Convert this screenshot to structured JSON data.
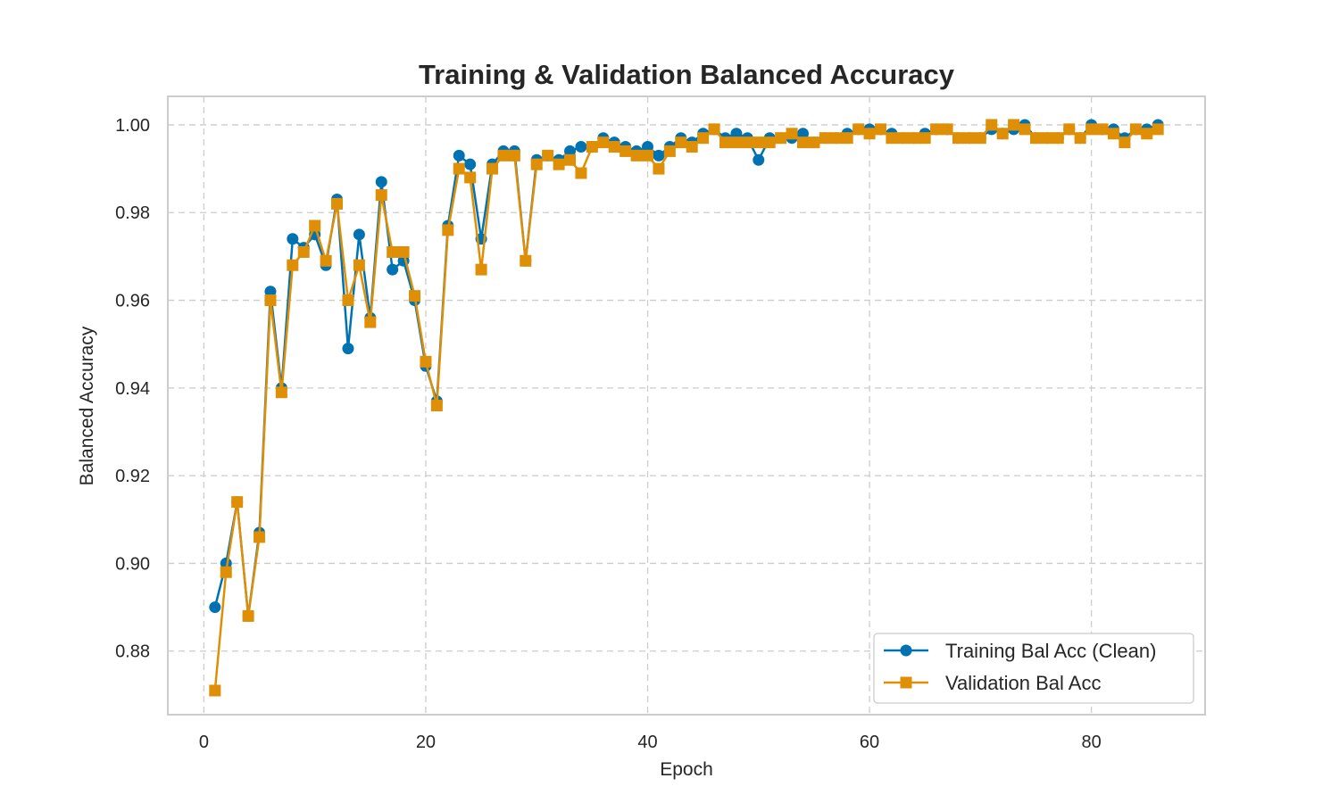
{
  "chart_data": {
    "type": "line",
    "title": "Training & Validation Balanced Accuracy",
    "xlabel": "Epoch",
    "ylabel": "Balanced Accuracy",
    "xlim": [
      -3.25,
      90.25
    ],
    "ylim": [
      0.8655,
      1.0065
    ],
    "xticks": [
      0,
      20,
      40,
      60,
      80
    ],
    "xtick_labels": [
      "0",
      "20",
      "40",
      "60",
      "80"
    ],
    "yticks": [
      0.88,
      0.9,
      0.92,
      0.94,
      0.96,
      0.98,
      1.0
    ],
    "ytick_labels": [
      "0.88",
      "0.90",
      "0.92",
      "0.94",
      "0.96",
      "0.98",
      "1.00"
    ],
    "grid": true,
    "legend_position": "lower-right",
    "series": [
      {
        "name": "Training Bal Acc (Clean)",
        "color": "#0072b2",
        "marker": "circle",
        "x": [
          1,
          2,
          3,
          4,
          5,
          6,
          7,
          8,
          9,
          10,
          11,
          12,
          13,
          14,
          15,
          16,
          17,
          18,
          19,
          20,
          21,
          22,
          23,
          24,
          25,
          26,
          27,
          28,
          29,
          30,
          31,
          32,
          33,
          34,
          35,
          36,
          37,
          38,
          39,
          40,
          41,
          42,
          43,
          44,
          45,
          46,
          47,
          48,
          49,
          50,
          51,
          52,
          53,
          54,
          55,
          56,
          57,
          58,
          59,
          60,
          61,
          62,
          63,
          64,
          65,
          66,
          67,
          68,
          69,
          70,
          71,
          72,
          73,
          74,
          75,
          76,
          77,
          78,
          79,
          80,
          81,
          82,
          83,
          84,
          85,
          86
        ],
        "values": [
          0.89,
          0.9,
          0.914,
          0.888,
          0.907,
          0.962,
          0.94,
          0.974,
          0.972,
          0.975,
          0.968,
          0.983,
          0.949,
          0.975,
          0.956,
          0.987,
          0.967,
          0.969,
          0.96,
          0.945,
          0.937,
          0.977,
          0.993,
          0.991,
          0.974,
          0.991,
          0.994,
          0.994,
          0.969,
          0.992,
          0.993,
          0.992,
          0.994,
          0.995,
          0.995,
          0.997,
          0.996,
          0.995,
          0.994,
          0.995,
          0.993,
          0.995,
          0.997,
          0.996,
          0.998,
          0.999,
          0.997,
          0.998,
          0.997,
          0.992,
          0.997,
          0.997,
          0.997,
          0.998,
          0.996,
          0.997,
          0.997,
          0.998,
          0.999,
          0.999,
          0.999,
          0.998,
          0.997,
          0.997,
          0.998,
          0.999,
          0.999,
          0.997,
          0.997,
          0.997,
          0.999,
          0.998,
          0.999,
          1.0,
          0.997,
          0.997,
          0.997,
          0.999,
          0.997,
          1.0,
          0.999,
          0.999,
          0.997,
          0.999,
          0.999,
          1.0
        ]
      },
      {
        "name": "Validation Bal Acc",
        "color": "#de8f05",
        "marker": "square",
        "x": [
          1,
          2,
          3,
          4,
          5,
          6,
          7,
          8,
          9,
          10,
          11,
          12,
          13,
          14,
          15,
          16,
          17,
          18,
          19,
          20,
          21,
          22,
          23,
          24,
          25,
          26,
          27,
          28,
          29,
          30,
          31,
          32,
          33,
          34,
          35,
          36,
          37,
          38,
          39,
          40,
          41,
          42,
          43,
          44,
          45,
          46,
          47,
          48,
          49,
          50,
          51,
          52,
          53,
          54,
          55,
          56,
          57,
          58,
          59,
          60,
          61,
          62,
          63,
          64,
          65,
          66,
          67,
          68,
          69,
          70,
          71,
          72,
          73,
          74,
          75,
          76,
          77,
          78,
          79,
          80,
          81,
          82,
          83,
          84,
          85,
          86
        ],
        "values": [
          0.871,
          0.898,
          0.914,
          0.888,
          0.906,
          0.96,
          0.939,
          0.968,
          0.971,
          0.977,
          0.969,
          0.982,
          0.96,
          0.968,
          0.955,
          0.984,
          0.971,
          0.971,
          0.961,
          0.946,
          0.936,
          0.976,
          0.99,
          0.988,
          0.967,
          0.99,
          0.993,
          0.993,
          0.969,
          0.991,
          0.993,
          0.991,
          0.992,
          0.989,
          0.995,
          0.996,
          0.995,
          0.994,
          0.993,
          0.993,
          0.99,
          0.994,
          0.996,
          0.995,
          0.997,
          0.999,
          0.996,
          0.996,
          0.996,
          0.996,
          0.996,
          0.997,
          0.998,
          0.996,
          0.996,
          0.997,
          0.997,
          0.997,
          0.999,
          0.998,
          0.999,
          0.997,
          0.997,
          0.997,
          0.997,
          0.999,
          0.999,
          0.997,
          0.997,
          0.997,
          1.0,
          0.998,
          1.0,
          0.999,
          0.997,
          0.997,
          0.997,
          0.999,
          0.997,
          0.999,
          0.999,
          0.998,
          0.996,
          0.999,
          0.998,
          0.999
        ]
      }
    ]
  }
}
